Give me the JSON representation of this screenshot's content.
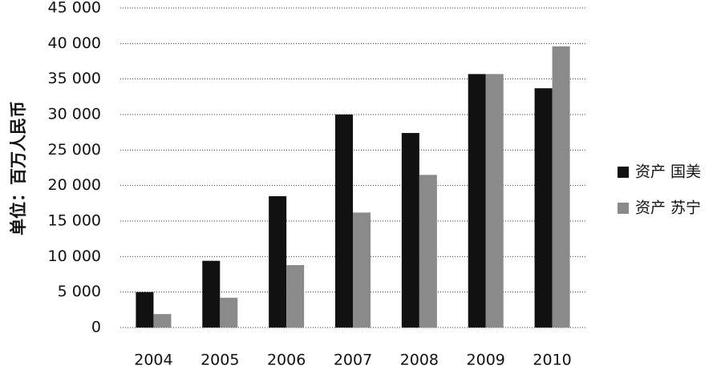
{
  "chart_data": {
    "type": "bar",
    "y_label": "单位：百万人民币",
    "categories": [
      "2004",
      "2005",
      "2006",
      "2007",
      "2008",
      "2009",
      "2010"
    ],
    "series": [
      {
        "name": "资产 国美",
        "color": "#111111",
        "values": [
          5000,
          9400,
          18500,
          30000,
          27400,
          35700,
          33700
        ]
      },
      {
        "name": "资产 苏宁",
        "color": "#8a8a8a",
        "values": [
          1900,
          4200,
          8800,
          16200,
          21500,
          35700,
          39600
        ]
      }
    ],
    "ylim": [
      0,
      45000
    ],
    "yticks": [
      0,
      {
        "value": 5000,
        "label": "5 000"
      },
      {
        "value": 10000,
        "label": "10 000"
      },
      {
        "value": 15000,
        "label": "15 000"
      },
      {
        "value": 20000,
        "label": "20 000"
      },
      {
        "value": 25000,
        "label": "25 000"
      },
      {
        "value": 30000,
        "label": "30 000"
      },
      {
        "value": 35000,
        "label": "35 000"
      },
      {
        "value": 40000,
        "label": "40 000"
      },
      {
        "value": 45000,
        "label": "45 000"
      }
    ],
    "grid": true
  }
}
